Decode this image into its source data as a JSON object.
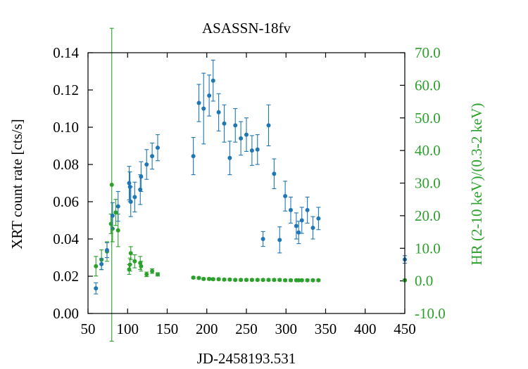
{
  "chart_data": {
    "type": "scatter",
    "title": "ASASSN-18fv",
    "xlabel": "JD-2458193.531",
    "ylabel": "XRT count rate [cts/s]",
    "y2label": "HR (2-10 keV)/(0.3-2 keV)",
    "xlim": [
      50,
      450
    ],
    "ylim": [
      0.0,
      0.14
    ],
    "y2lim": [
      -10.0,
      70.0
    ],
    "x_ticks": [
      "50",
      "100",
      "150",
      "200",
      "250",
      "300",
      "350",
      "400",
      "450"
    ],
    "y_ticks": [
      "0.00",
      "0.02",
      "0.04",
      "0.06",
      "0.08",
      "0.10",
      "0.12",
      "0.14"
    ],
    "y2_ticks": [
      "-10.0",
      "0.0",
      "10.0",
      "20.0",
      "30.0",
      "40.0",
      "50.0",
      "60.0",
      "70.0"
    ],
    "colors": {
      "count_rate": "#1f77b4",
      "hardness": "#2ca02c",
      "axis_left": "#000000",
      "axis_right": "#2ca02c"
    },
    "series": [
      {
        "axis": "left",
        "points": [
          {
            "x": 60,
            "y": 0.0135,
            "err": 0.003
          },
          {
            "x": 67,
            "y": 0.0265,
            "err": 0.003
          },
          {
            "x": 74,
            "y": 0.034,
            "err": 0.004
          },
          {
            "x": 81,
            "y": 0.0525,
            "err": 0.007
          },
          {
            "x": 88,
            "y": 0.0575,
            "err": 0.008
          },
          {
            "x": 102,
            "y": 0.07,
            "err": 0.009
          },
          {
            "x": 103,
            "y": 0.068,
            "err": 0.008
          },
          {
            "x": 104,
            "y": 0.06,
            "err": 0.008
          },
          {
            "x": 109,
            "y": 0.0625,
            "err": 0.008
          },
          {
            "x": 116,
            "y": 0.0665,
            "err": 0.008
          },
          {
            "x": 117,
            "y": 0.0735,
            "err": 0.008
          },
          {
            "x": 124,
            "y": 0.08,
            "err": 0.008
          },
          {
            "x": 131,
            "y": 0.0845,
            "err": 0.007
          },
          {
            "x": 138,
            "y": 0.089,
            "err": 0.007
          },
          {
            "x": 183,
            "y": 0.0845,
            "err": 0.01
          },
          {
            "x": 190,
            "y": 0.113,
            "err": 0.01
          },
          {
            "x": 196,
            "y": 0.11,
            "err": 0.019
          },
          {
            "x": 203,
            "y": 0.117,
            "err": 0.011
          },
          {
            "x": 208,
            "y": 0.125,
            "err": 0.011
          },
          {
            "x": 215,
            "y": 0.108,
            "err": 0.01
          },
          {
            "x": 222,
            "y": 0.102,
            "err": 0.01
          },
          {
            "x": 229,
            "y": 0.0835,
            "err": 0.009
          },
          {
            "x": 236,
            "y": 0.101,
            "err": 0.009
          },
          {
            "x": 243,
            "y": 0.094,
            "err": 0.009
          },
          {
            "x": 250,
            "y": 0.096,
            "err": 0.009
          },
          {
            "x": 257,
            "y": 0.0875,
            "err": 0.008
          },
          {
            "x": 264,
            "y": 0.088,
            "err": 0.008
          },
          {
            "x": 271,
            "y": 0.04,
            "err": 0.004
          },
          {
            "x": 278,
            "y": 0.101,
            "err": 0.011
          },
          {
            "x": 285,
            "y": 0.075,
            "err": 0.008
          },
          {
            "x": 292,
            "y": 0.0395,
            "err": 0.007
          },
          {
            "x": 299,
            "y": 0.063,
            "err": 0.008
          },
          {
            "x": 306,
            "y": 0.0555,
            "err": 0.007
          },
          {
            "x": 313,
            "y": 0.047,
            "err": 0.007
          },
          {
            "x": 316,
            "y": 0.0435,
            "err": 0.006
          },
          {
            "x": 320,
            "y": 0.05,
            "err": 0.007
          },
          {
            "x": 327,
            "y": 0.0555,
            "err": 0.007
          },
          {
            "x": 334,
            "y": 0.046,
            "err": 0.006
          },
          {
            "x": 341,
            "y": 0.051,
            "err": 0.006
          },
          {
            "x": 450,
            "y": 0.029,
            "err": 0.002
          }
        ]
      },
      {
        "axis": "right",
        "points": [
          {
            "x": 60,
            "y": 4.5,
            "err": 3.0
          },
          {
            "x": 67,
            "y": 6.5,
            "err": 3.0
          },
          {
            "x": 74,
            "y": 9.0,
            "err": 3.0
          },
          {
            "x": 79,
            "y": 17.5,
            "err": 3.0
          },
          {
            "x": 80,
            "y": 29.5,
            "err": 48.0
          },
          {
            "x": 81,
            "y": 16.0,
            "err": 4.0
          },
          {
            "x": 85,
            "y": 21.0,
            "err": 4.0
          },
          {
            "x": 88,
            "y": 15.5,
            "err": 5.0
          },
          {
            "x": 102,
            "y": 3.5,
            "err": 1.5
          },
          {
            "x": 103,
            "y": 5.0,
            "err": 2.0
          },
          {
            "x": 104,
            "y": 8.5,
            "err": 2.0
          },
          {
            "x": 109,
            "y": 6.0,
            "err": 2.0
          },
          {
            "x": 116,
            "y": 5.5,
            "err": 2.0
          },
          {
            "x": 117,
            "y": 4.5,
            "err": 1.5
          },
          {
            "x": 124,
            "y": 2.0,
            "err": 0.7
          },
          {
            "x": 131,
            "y": 3.0,
            "err": 0.7
          },
          {
            "x": 138,
            "y": 2.0,
            "err": 0.5
          },
          {
            "x": 183,
            "y": 1.0,
            "err": 0.3
          },
          {
            "x": 190,
            "y": 0.9,
            "err": 0.3
          },
          {
            "x": 196,
            "y": 0.6,
            "err": 0.3
          },
          {
            "x": 203,
            "y": 0.6,
            "err": 0.3
          },
          {
            "x": 208,
            "y": 0.5,
            "err": 0.3
          },
          {
            "x": 215,
            "y": 0.5,
            "err": 0.3
          },
          {
            "x": 222,
            "y": 0.4,
            "err": 0.3
          },
          {
            "x": 229,
            "y": 0.4,
            "err": 0.3
          },
          {
            "x": 236,
            "y": 0.3,
            "err": 0.3
          },
          {
            "x": 243,
            "y": 0.3,
            "err": 0.3
          },
          {
            "x": 250,
            "y": 0.3,
            "err": 0.3
          },
          {
            "x": 257,
            "y": 0.3,
            "err": 0.3
          },
          {
            "x": 264,
            "y": 0.3,
            "err": 0.3
          },
          {
            "x": 271,
            "y": 0.3,
            "err": 0.3
          },
          {
            "x": 278,
            "y": 0.3,
            "err": 0.3
          },
          {
            "x": 285,
            "y": 0.3,
            "err": 0.3
          },
          {
            "x": 292,
            "y": 0.3,
            "err": 0.3
          },
          {
            "x": 299,
            "y": 0.2,
            "err": 0.3
          },
          {
            "x": 306,
            "y": 0.2,
            "err": 0.3
          },
          {
            "x": 313,
            "y": 0.2,
            "err": 0.3
          },
          {
            "x": 316,
            "y": 0.2,
            "err": 0.3
          },
          {
            "x": 320,
            "y": 0.2,
            "err": 0.3
          },
          {
            "x": 327,
            "y": 0.2,
            "err": 0.3
          },
          {
            "x": 334,
            "y": 0.2,
            "err": 0.3
          },
          {
            "x": 341,
            "y": 0.2,
            "err": 0.3
          },
          {
            "x": 450,
            "y": 0.2,
            "err": 0.3
          }
        ]
      }
    ]
  }
}
